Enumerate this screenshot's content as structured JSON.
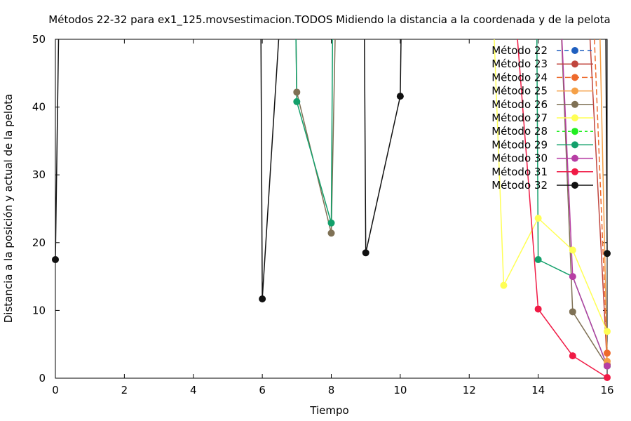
{
  "chart_data": {
    "type": "line",
    "title": "Métodos 22-32 para ex1_125.movsestimacion.TODOS Midiendo la distancia a la coordenada y de la pelota",
    "xlabel": "Tiempo",
    "ylabel": "Distancia a la posición y actual de la pelota",
    "xlim": [
      0,
      16
    ],
    "ylim": [
      0,
      50
    ],
    "xticks": [
      0,
      2,
      4,
      6,
      8,
      10,
      12,
      14,
      16
    ],
    "yticks": [
      0,
      10,
      20,
      30,
      40,
      50
    ],
    "grid": false,
    "legend_position": "top-right",
    "series": [
      {
        "name": "Método 22",
        "color": "#1f5fbf",
        "dash": "6,5",
        "points": [
          [
            16,
            1.8
          ]
        ]
      },
      {
        "name": "Método 23",
        "color": "#c0463e",
        "dash": "",
        "points": [
          [
            15.4,
            60
          ],
          [
            16,
            2.0
          ]
        ]
      },
      {
        "name": "Método 24",
        "color": "#ee6a2c",
        "dash": "8,4",
        "points": [
          [
            15.55,
            60
          ],
          [
            16,
            3.7
          ]
        ]
      },
      {
        "name": "Método 25",
        "color": "#f5a047",
        "dash": "",
        "points": [
          [
            15.75,
            60
          ],
          [
            16,
            2.5
          ]
        ]
      },
      {
        "name": "Método 26",
        "color": "#7f7155",
        "dash": "",
        "points": [
          [
            6.95,
            60
          ],
          [
            7,
            42.2
          ],
          [
            8,
            21.4
          ],
          [
            8.15,
            60
          ],
          [
            14.6,
            60
          ],
          [
            15,
            9.8
          ],
          [
            16,
            1.8
          ]
        ]
      },
      {
        "name": "Método 27",
        "color": "#ffff55",
        "dash": "",
        "points": [
          [
            12.65,
            60
          ],
          [
            13,
            13.7
          ],
          [
            14,
            23.6
          ],
          [
            15,
            18.9
          ],
          [
            16,
            6.9
          ]
        ]
      },
      {
        "name": "Método 28",
        "color": "#22ee22",
        "dash": "4,4",
        "points": [
          [
            16,
            2.0
          ]
        ]
      },
      {
        "name": "Método 29",
        "color": "#13a06b",
        "dash": "",
        "points": [
          [
            6.95,
            60
          ],
          [
            7,
            40.8
          ],
          [
            8,
            22.9
          ],
          [
            8.05,
            60
          ],
          [
            13.95,
            60
          ],
          [
            14,
            17.5
          ],
          [
            15,
            15.0
          ],
          [
            16,
            1.8
          ]
        ]
      },
      {
        "name": "Método 30",
        "color": "#b73ea4",
        "dash": "",
        "points": [
          [
            14.6,
            60
          ],
          [
            15,
            15.0
          ],
          [
            16,
            1.8
          ]
        ]
      },
      {
        "name": "Método 31",
        "color": "#f01a45",
        "dash": "",
        "points": [
          [
            13.25,
            60
          ],
          [
            14,
            10.2
          ],
          [
            15,
            3.3
          ],
          [
            16,
            0.1
          ]
        ]
      },
      {
        "name": "Método 32",
        "color": "#111111",
        "dash": "",
        "points": [
          [
            0,
            17.5
          ],
          [
            0.12,
            60
          ],
          [
            5.95,
            60
          ],
          [
            6,
            11.7
          ],
          [
            6.6,
            60
          ],
          [
            8.95,
            60
          ],
          [
            9,
            18.5
          ],
          [
            10,
            41.6
          ],
          [
            10.05,
            60
          ],
          [
            15.95,
            60
          ],
          [
            16,
            18.4
          ]
        ]
      }
    ],
    "markers": [
      {
        "series": "Método 22",
        "x": 16,
        "y": 1.8
      },
      {
        "series": "Método 23",
        "x": 16,
        "y": 2.0
      },
      {
        "series": "Método 24",
        "x": 16,
        "y": 3.7
      },
      {
        "series": "Método 25",
        "x": 16,
        "y": 2.5
      },
      {
        "series": "Método 26",
        "x": 7,
        "y": 42.2
      },
      {
        "series": "Método 26",
        "x": 8,
        "y": 21.4
      },
      {
        "series": "Método 26",
        "x": 15,
        "y": 9.8
      },
      {
        "series": "Método 26",
        "x": 16,
        "y": 1.8
      },
      {
        "series": "Método 27",
        "x": 13,
        "y": 13.7
      },
      {
        "series": "Método 27",
        "x": 14,
        "y": 23.6
      },
      {
        "series": "Método 27",
        "x": 15,
        "y": 18.9
      },
      {
        "series": "Método 27",
        "x": 16,
        "y": 6.9
      },
      {
        "series": "Método 29",
        "x": 7,
        "y": 40.8
      },
      {
        "series": "Método 29",
        "x": 8,
        "y": 22.9
      },
      {
        "series": "Método 29",
        "x": 14,
        "y": 17.5
      },
      {
        "series": "Método 29",
        "x": 16,
        "y": 1.8
      },
      {
        "series": "Método 30",
        "x": 15,
        "y": 15.0
      },
      {
        "series": "Método 30",
        "x": 16,
        "y": 1.8
      },
      {
        "series": "Método 31",
        "x": 14,
        "y": 10.2
      },
      {
        "series": "Método 31",
        "x": 15,
        "y": 3.3
      },
      {
        "series": "Método 31",
        "x": 16,
        "y": 0.1
      },
      {
        "series": "Método 32",
        "x": 0,
        "y": 17.5
      },
      {
        "series": "Método 32",
        "x": 6,
        "y": 11.7
      },
      {
        "series": "Método 32",
        "x": 9,
        "y": 18.5
      },
      {
        "series": "Método 32",
        "x": 10,
        "y": 41.6
      },
      {
        "series": "Método 32",
        "x": 16,
        "y": 18.4
      }
    ]
  }
}
